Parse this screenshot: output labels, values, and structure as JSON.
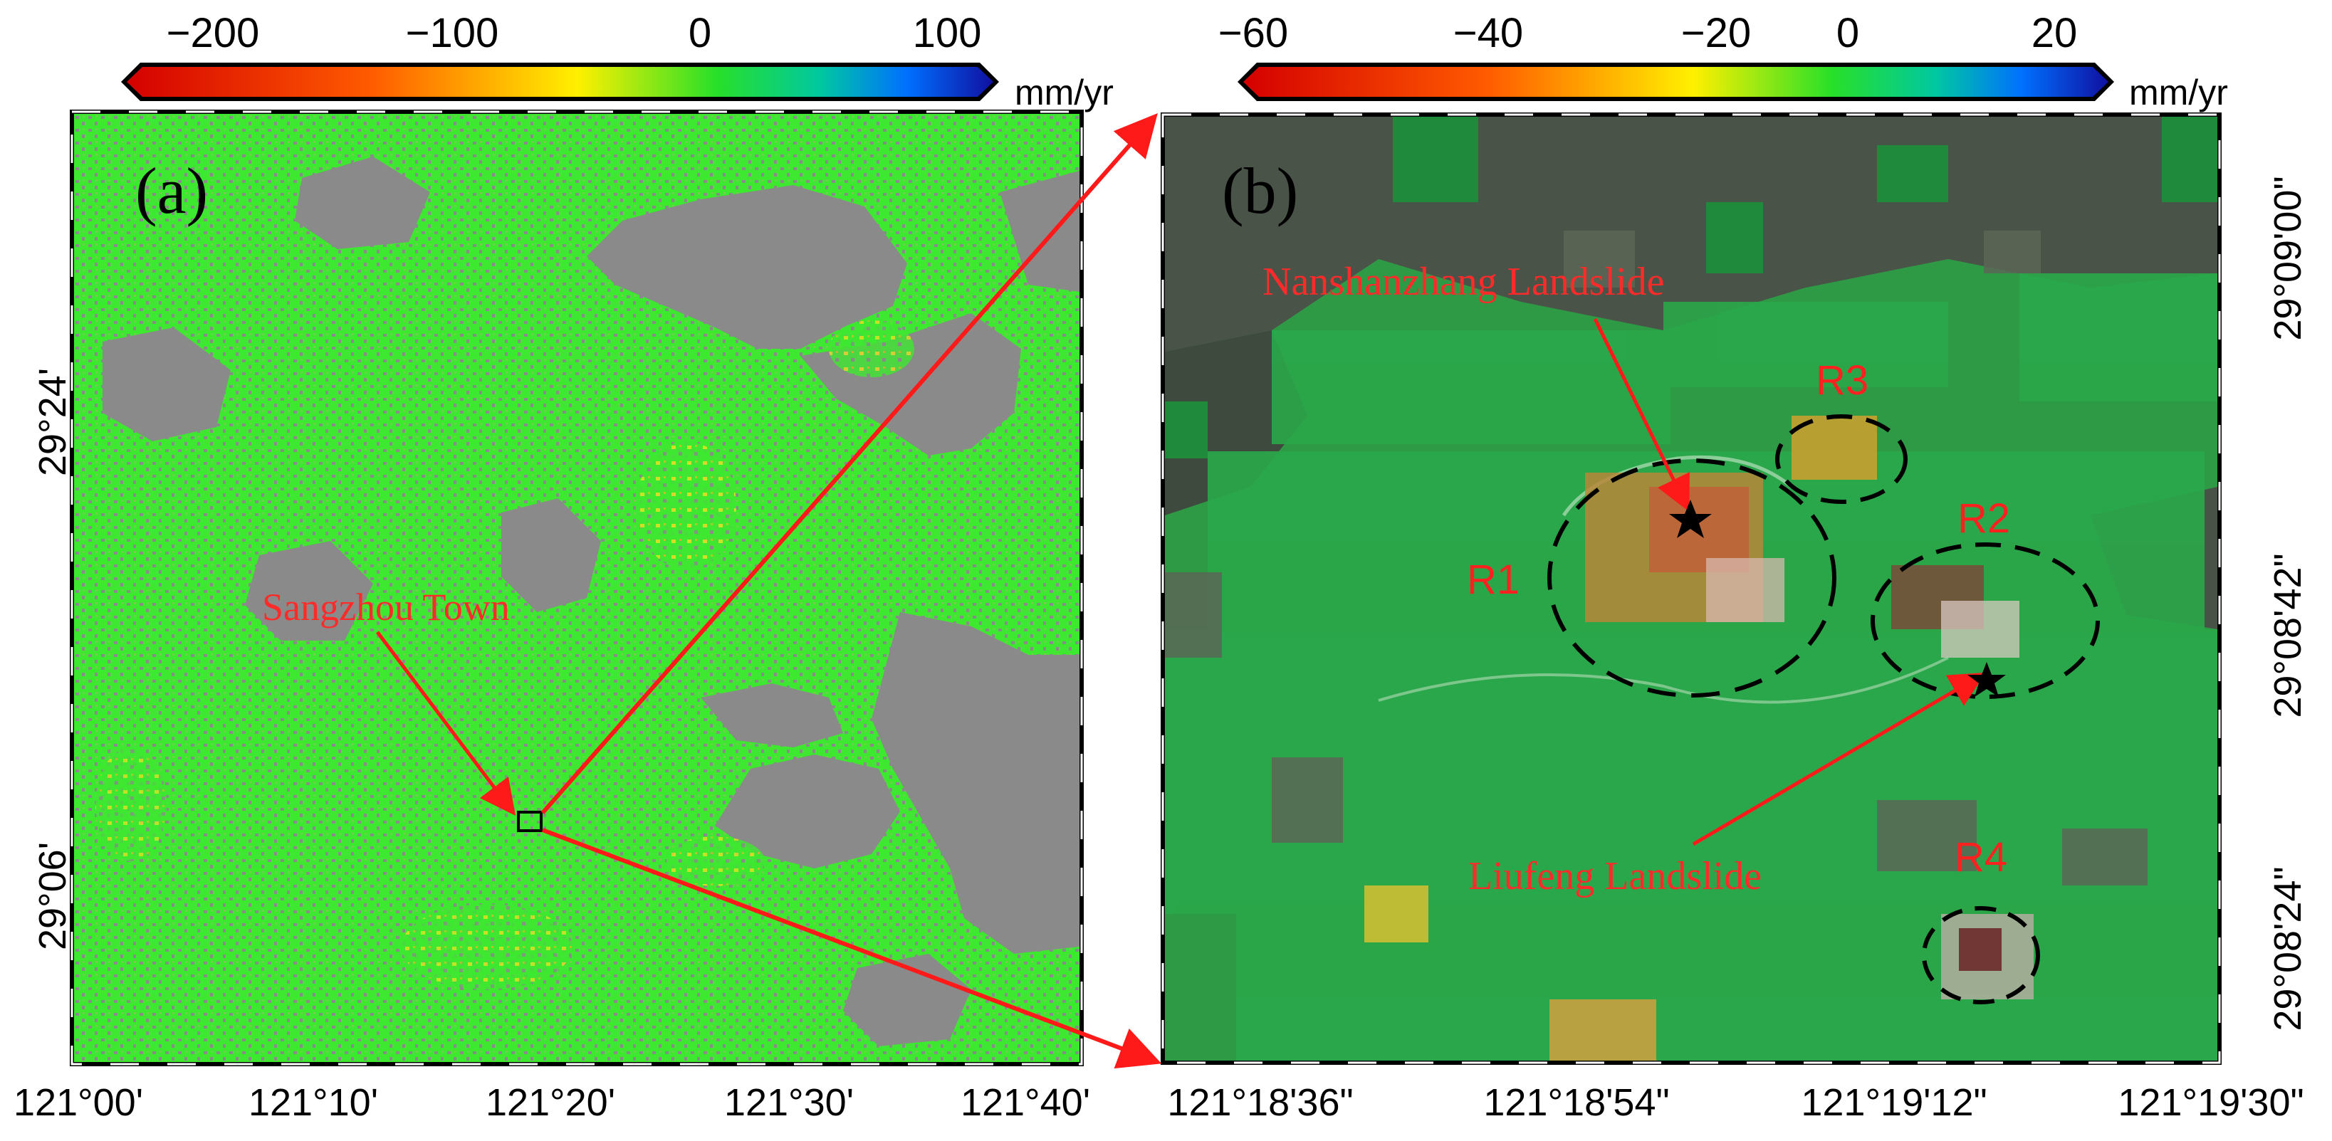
{
  "colorbar_a": {
    "ticks": [
      "−200",
      "−100",
      "0",
      "100"
    ],
    "unit": "mm/yr",
    "range": [
      -200,
      100
    ]
  },
  "colorbar_b": {
    "ticks": [
      "−60",
      "−40",
      "−20",
      "0",
      "20"
    ],
    "unit": "mm/yr",
    "range": [
      -60,
      25
    ]
  },
  "panel_a": {
    "label": "(a)",
    "x_ticks": [
      "121°00'",
      "121°10'",
      "121°20'",
      "121°30'",
      "121°40'"
    ],
    "y_ticks": [
      "29°24'",
      "29°06'"
    ],
    "annotation": "Sangzhou Town"
  },
  "panel_b": {
    "label": "(b)",
    "x_ticks": [
      "121°18'36\"",
      "121°18'54\"",
      "121°19'12\"",
      "121°19'30\""
    ],
    "y_ticks": [
      "29°09'00\"",
      "29°08'42\"",
      "29°08'24\""
    ],
    "landslide_1": "Nanshanzhang Landslide",
    "landslide_2": "Liufeng Landslide",
    "regions": [
      "R1",
      "R2",
      "R3",
      "R4"
    ]
  },
  "colors": {
    "stable": "#33ee22",
    "nodata": "#8a8a8a",
    "annotation": "#ff2020"
  }
}
